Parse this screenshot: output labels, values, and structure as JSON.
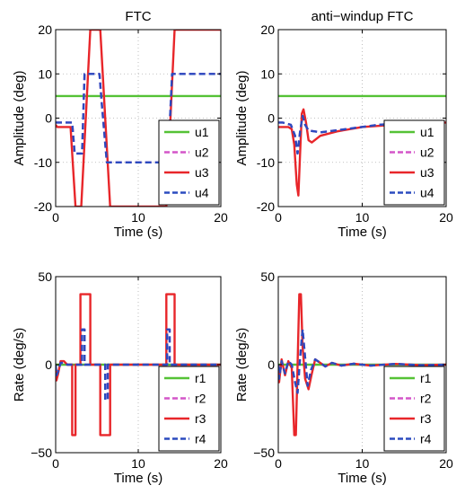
{
  "colors": {
    "green": "#55c236",
    "magenta": "#d455c9",
    "red": "#e8262a",
    "blue": "#2b4bbf"
  },
  "chart_data": [
    {
      "type": "line",
      "title": "FTC",
      "xlabel": "Time (s)",
      "ylabel": "Amplitude (deg)",
      "xlim": [
        0,
        20
      ],
      "ylim": [
        -20,
        20
      ],
      "xticks": [
        "0",
        "10",
        "20"
      ],
      "yticks": [
        "-20",
        "-10",
        "0",
        "10",
        "20"
      ],
      "grid": true,
      "legend": "bottom-right",
      "series": [
        {
          "name": "u1",
          "style": "solid",
          "color": "#55c236",
          "x": [
            0,
            20
          ],
          "y": [
            5,
            5
          ]
        },
        {
          "name": "u2",
          "style": "dashed",
          "color": "#d455c9",
          "x": [
            0,
            0.2,
            2,
            2.3,
            3.2,
            3.5,
            5.3,
            5.6,
            6.2,
            13.6,
            14.1,
            20
          ],
          "y": [
            -1,
            -1,
            -1,
            -8,
            -8,
            10,
            10,
            3,
            -10,
            -10,
            10,
            10
          ]
        },
        {
          "name": "u3",
          "style": "solid",
          "color": "#e8262a",
          "x": [
            0,
            0.2,
            1.8,
            2.4,
            3.1,
            4.2,
            4.6,
            5.4,
            6.0,
            6.6,
            7.2,
            13.4,
            14.4,
            14.8,
            20
          ],
          "y": [
            -1.5,
            -2,
            -2,
            -20,
            -20,
            20,
            20,
            20,
            0,
            -20,
            -20,
            -20,
            20,
            20,
            20
          ]
        },
        {
          "name": "u4",
          "style": "dashed",
          "color": "#2b4bbf",
          "x": [
            0,
            0.2,
            2,
            2.3,
            3.2,
            3.5,
            5.3,
            5.6,
            6.2,
            13.6,
            14.1,
            20
          ],
          "y": [
            -1,
            -1,
            -1,
            -8,
            -8,
            10,
            10,
            3,
            -10,
            -10,
            10,
            10
          ]
        }
      ]
    },
    {
      "type": "line",
      "title": "anti−windup FTC",
      "xlabel": "Time (s)",
      "ylabel": "Amplitude (deg)",
      "xlim": [
        0,
        20
      ],
      "ylim": [
        -20,
        20
      ],
      "xticks": [
        "0",
        "10",
        "20"
      ],
      "yticks": [
        "-20",
        "-10",
        "0",
        "10",
        "20"
      ],
      "grid": true,
      "legend": "bottom-right",
      "series": [
        {
          "name": "u1",
          "style": "solid",
          "color": "#55c236",
          "x": [
            0,
            20
          ],
          "y": [
            5,
            5
          ]
        },
        {
          "name": "u2",
          "style": "dashed",
          "color": "#d455c9",
          "x": [
            0,
            0.5,
            1.5,
            2.0,
            2.3,
            2.6,
            2.9,
            3.2,
            3.6,
            5,
            8,
            12,
            16,
            20
          ],
          "y": [
            -1,
            -1,
            -1.5,
            -4,
            -8,
            -3,
            0.5,
            -1.5,
            -2.8,
            -3.2,
            -2.5,
            -1.5,
            -1.0,
            -0.8
          ]
        },
        {
          "name": "u3",
          "style": "solid",
          "color": "#e8262a",
          "x": [
            0,
            0.5,
            1.2,
            1.6,
            1.9,
            2.2,
            2.4,
            2.6,
            2.8,
            3.0,
            3.3,
            3.6,
            4.0,
            5,
            7,
            10,
            13,
            16,
            20
          ],
          "y": [
            -2,
            -2,
            -2,
            -2.5,
            -6,
            -15,
            -17.5,
            -8,
            1,
            2,
            -1,
            -5,
            -5.5,
            -4,
            -3,
            -2,
            -1.6,
            -1.2,
            -1
          ]
        },
        {
          "name": "u4",
          "style": "dashed",
          "color": "#2b4bbf",
          "x": [
            0,
            0.5,
            1.5,
            2.0,
            2.3,
            2.6,
            2.9,
            3.2,
            3.6,
            5,
            8,
            12,
            16,
            20
          ],
          "y": [
            -1,
            -1,
            -1.5,
            -4,
            -8,
            -3,
            0.5,
            -1.5,
            -2.8,
            -3.2,
            -2.5,
            -1.5,
            -1.0,
            -0.8
          ]
        }
      ]
    },
    {
      "type": "line",
      "title": "",
      "xlabel": "Time (s)",
      "ylabel": "Rate (deg/s)",
      "xlim": [
        0,
        20
      ],
      "ylim": [
        -50,
        50
      ],
      "xticks": [
        "0",
        "10",
        "20"
      ],
      "yticks": [
        "−50",
        "0",
        "50"
      ],
      "grid": true,
      "legend": "bottom-right",
      "series": [
        {
          "name": "r1",
          "style": "solid",
          "color": "#55c236",
          "x": [
            0,
            20
          ],
          "y": [
            0,
            0
          ]
        },
        {
          "name": "r2",
          "style": "dashed",
          "color": "#d455c9",
          "x": [
            0,
            0.1,
            0.3,
            0.6,
            1.0,
            1.4,
            3.2,
            3.2,
            3.5,
            3.5,
            6.0,
            6.0,
            6.3,
            6.3,
            13.5,
            13.5,
            13.8,
            13.8,
            20
          ],
          "y": [
            0,
            -6,
            -4,
            1,
            1,
            0,
            0,
            20,
            20,
            0,
            0,
            -20,
            -20,
            0,
            0,
            20,
            20,
            0,
            0
          ]
        },
        {
          "name": "r3",
          "style": "solid",
          "color": "#e8262a",
          "x": [
            0,
            0.1,
            0.3,
            0.6,
            1.0,
            1.4,
            2.0,
            2.0,
            2.4,
            2.4,
            3.0,
            3.0,
            4.2,
            4.2,
            5.4,
            5.4,
            6.6,
            6.6,
            13.4,
            13.4,
            14.4,
            14.4,
            20
          ],
          "y": [
            0,
            -9,
            -5,
            2,
            2,
            0,
            0,
            -40,
            -40,
            0,
            0,
            40,
            40,
            0,
            0,
            -40,
            -40,
            0,
            0,
            40,
            40,
            0,
            0
          ]
        },
        {
          "name": "r4",
          "style": "dashed",
          "color": "#2b4bbf",
          "x": [
            0,
            0.1,
            0.3,
            0.6,
            1.0,
            1.4,
            3.2,
            3.2,
            3.5,
            3.5,
            6.0,
            6.0,
            6.3,
            6.3,
            13.5,
            13.5,
            13.8,
            13.8,
            20
          ],
          "y": [
            0,
            -6,
            -4,
            1,
            1,
            0,
            0,
            20,
            20,
            0,
            0,
            -20,
            -20,
            0,
            0,
            20,
            20,
            0,
            0
          ]
        }
      ]
    },
    {
      "type": "line",
      "title": "",
      "xlabel": "Time (s)",
      "ylabel": "Rate (deg/s)",
      "xlim": [
        0,
        20
      ],
      "ylim": [
        -50,
        50
      ],
      "xticks": [
        "0",
        "10",
        "20"
      ],
      "yticks": [
        "−50",
        "0",
        "50"
      ],
      "grid": true,
      "legend": "bottom-right",
      "series": [
        {
          "name": "r1",
          "style": "solid",
          "color": "#55c236",
          "x": [
            0,
            20
          ],
          "y": [
            0,
            0
          ]
        },
        {
          "name": "r2",
          "style": "dashed",
          "color": "#d455c9",
          "x": [
            0,
            0.1,
            0.4,
            0.8,
            1.2,
            1.6,
            2.0,
            2.3,
            2.6,
            2.9,
            3.2,
            3.5,
            3.9,
            4.4,
            5,
            5.6,
            6.4,
            7.5,
            9,
            11,
            14,
            17,
            20
          ],
          "y": [
            0,
            -8,
            2,
            -5,
            2,
            0,
            -10,
            -16,
            4,
            20,
            4,
            -12,
            -3,
            3,
            1,
            -1,
            1,
            -0.5,
            0.5,
            -0.5,
            0.4,
            -0.3,
            0
          ]
        },
        {
          "name": "r3",
          "style": "solid",
          "color": "#e8262a",
          "x": [
            0,
            0.1,
            0.4,
            0.8,
            1.2,
            1.6,
            1.9,
            2.1,
            2.3,
            2.5,
            2.7,
            2.9,
            3.2,
            3.6,
            4.0,
            4.4,
            5,
            5.6,
            6.4,
            7.5,
            9,
            11,
            14,
            17,
            20
          ],
          "y": [
            0,
            -10,
            3,
            -6,
            2,
            -2,
            -40,
            -40,
            0,
            40,
            40,
            10,
            -8,
            -14,
            -5,
            3,
            1,
            -1,
            1,
            -0.5,
            0.5,
            -0.5,
            0.4,
            -0.3,
            0
          ]
        },
        {
          "name": "r4",
          "style": "dashed",
          "color": "#2b4bbf",
          "x": [
            0,
            0.1,
            0.4,
            0.8,
            1.2,
            1.6,
            2.0,
            2.3,
            2.6,
            2.9,
            3.2,
            3.5,
            3.9,
            4.4,
            5,
            5.6,
            6.4,
            7.5,
            9,
            11,
            14,
            17,
            20
          ],
          "y": [
            0,
            -8,
            2,
            -5,
            2,
            0,
            -10,
            -16,
            4,
            20,
            4,
            -12,
            -3,
            3,
            1,
            -1,
            1,
            -0.5,
            0.5,
            -0.5,
            0.4,
            -0.3,
            0
          ]
        }
      ]
    }
  ]
}
